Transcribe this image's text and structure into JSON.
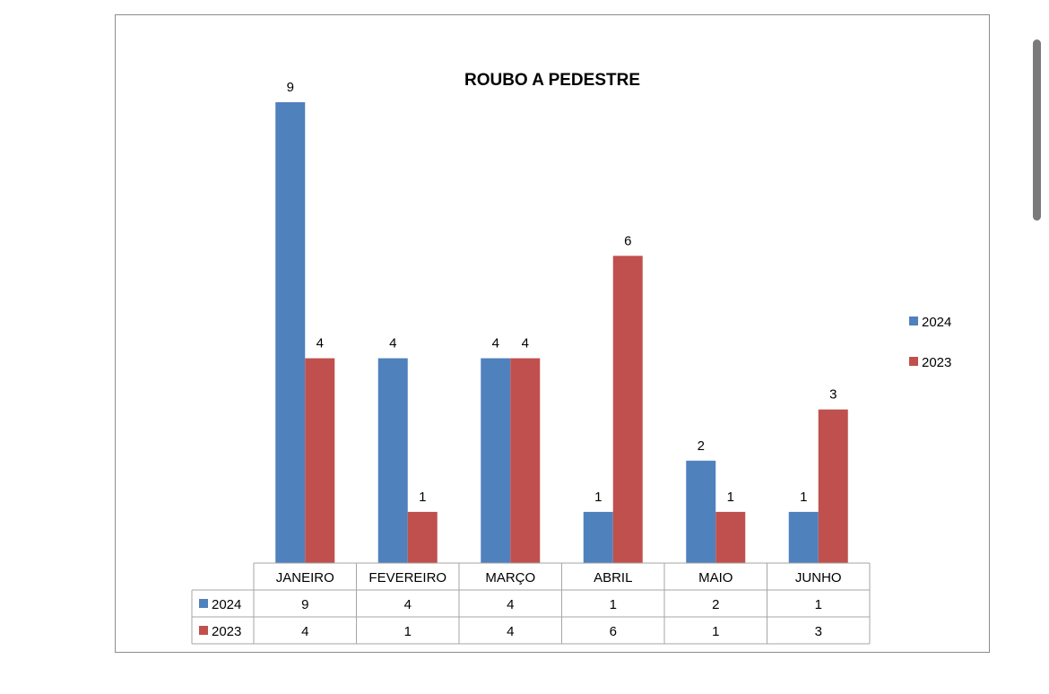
{
  "chart_data": {
    "type": "bar",
    "title": "ROUBO A PEDESTRE",
    "categories": [
      "JANEIRO",
      "FEVEREIRO",
      "MARÇO",
      "ABRIL",
      "MAIO",
      "JUNHO"
    ],
    "series": [
      {
        "name": "2024",
        "values": [
          9,
          4,
          4,
          1,
          2,
          1
        ],
        "color": "#4f81bd"
      },
      {
        "name": "2023",
        "values": [
          4,
          1,
          4,
          6,
          1,
          3
        ],
        "color": "#c0504d"
      }
    ],
    "ylim": [
      0,
      9
    ],
    "data_labels": true,
    "data_table": true,
    "legend_position": "right",
    "grid": false
  }
}
